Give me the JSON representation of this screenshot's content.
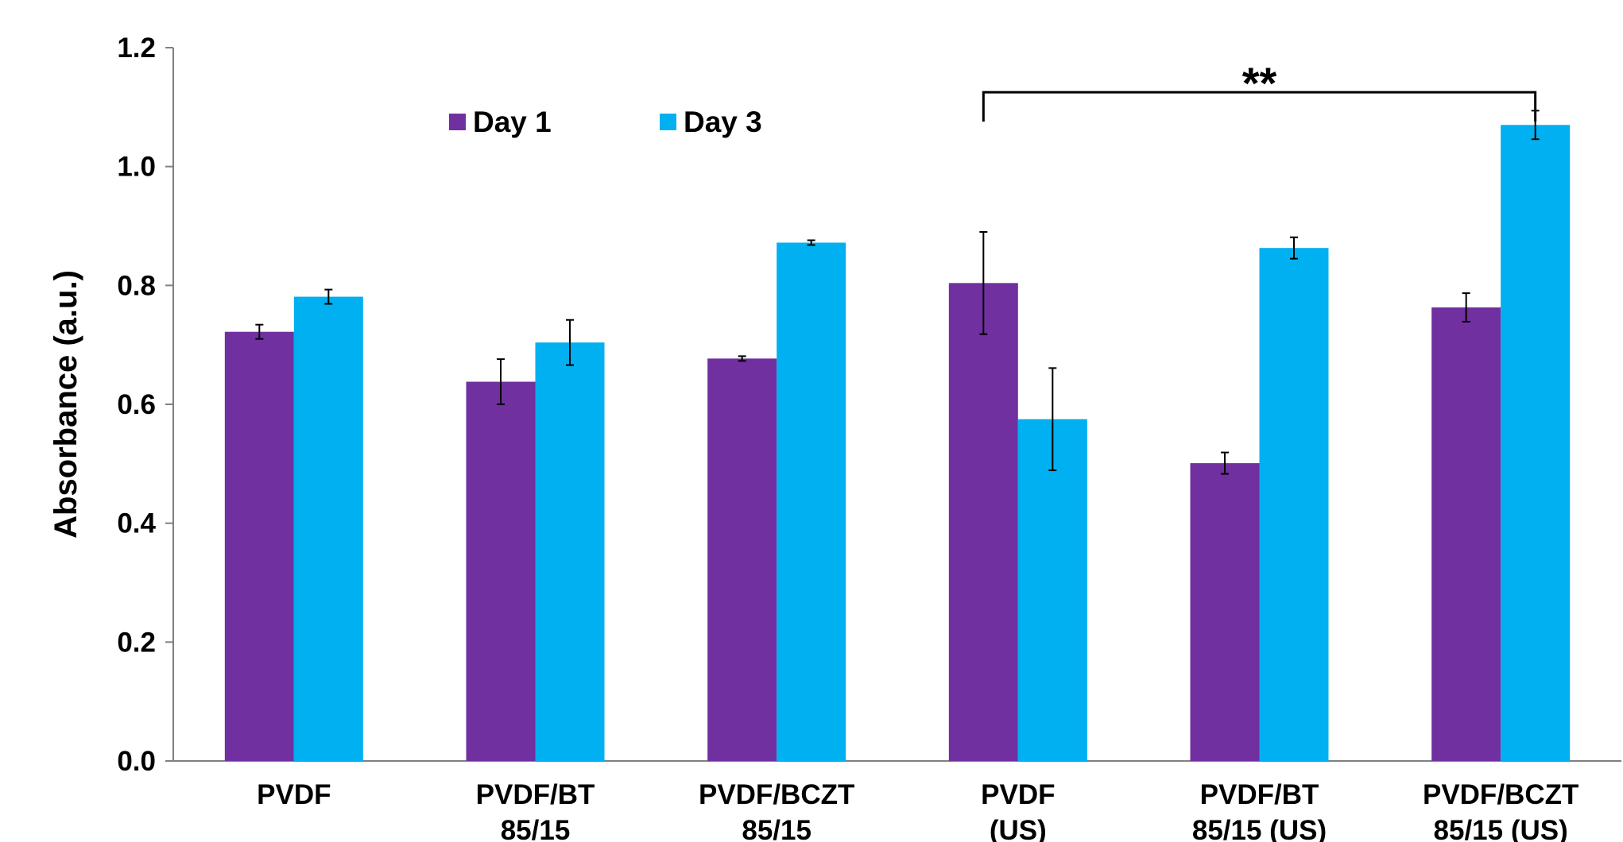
{
  "chart_data": {
    "type": "bar",
    "title": "",
    "xlabel": "",
    "ylabel": "Absorbance (a.u.)",
    "ylim": [
      0,
      1.2
    ],
    "yticks": [
      "0.0",
      "0.2",
      "0.4",
      "0.6",
      "0.8",
      "1.0",
      "1.2"
    ],
    "grid": false,
    "legend_position": "top-left",
    "categories": [
      [
        "PVDF"
      ],
      [
        "PVDF/BT",
        "85/15"
      ],
      [
        "PVDF/BCZT",
        "85/15"
      ],
      [
        "PVDF",
        "(US)"
      ],
      [
        "PVDF/BT",
        "85/15 (US)"
      ],
      [
        "PVDF/BCZT",
        "85/15 (US)"
      ]
    ],
    "series": [
      {
        "name": "Day 1",
        "color": "#7030A0",
        "values": [
          0.722,
          0.638,
          0.677,
          0.804,
          0.501,
          0.763
        ],
        "errors": [
          0.012,
          0.038,
          0.004,
          0.086,
          0.018,
          0.024
        ]
      },
      {
        "name": "Day 3",
        "color": "#00B0F0",
        "values": [
          0.781,
          0.704,
          0.872,
          0.575,
          0.863,
          1.07
        ],
        "errors": [
          0.012,
          0.038,
          0.004,
          0.086,
          0.018,
          0.024
        ]
      }
    ],
    "annotations": [
      {
        "text": "**",
        "from": {
          "category_index": 3,
          "series_index": 0
        },
        "to": {
          "category_index": 5,
          "series_index": 1
        },
        "level": 1.125
      }
    ]
  }
}
